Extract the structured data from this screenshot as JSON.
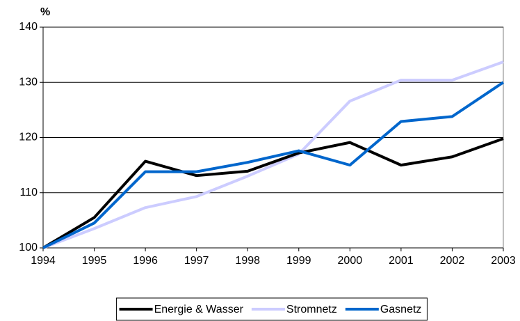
{
  "chart_data": {
    "type": "line",
    "y_label": "%",
    "x": [
      1994,
      1995,
      1996,
      1997,
      1998,
      1999,
      2000,
      2001,
      2002,
      2003
    ],
    "xlim": [
      1994,
      2003
    ],
    "xticks": [
      1994,
      1995,
      1996,
      1997,
      1998,
      1999,
      2000,
      2001,
      2002,
      2003
    ],
    "ylim": [
      100,
      140
    ],
    "yticks": [
      100,
      110,
      120,
      130,
      140
    ],
    "grid": true,
    "legend": "bottom",
    "series": [
      {
        "name": "Energie & Wasser",
        "color": "#000000",
        "values": [
          100,
          105.5,
          115.7,
          113.1,
          113.9,
          117.2,
          119.1,
          115.0,
          116.5,
          119.8
        ]
      },
      {
        "name": "Stromnetz",
        "color": "#ccccff",
        "values": [
          100,
          103.5,
          107.3,
          109.3,
          113.0,
          117.0,
          126.6,
          130.4,
          130.4,
          133.7
        ]
      },
      {
        "name": "Gasnetz",
        "color": "#0066cc",
        "values": [
          100,
          104.5,
          113.8,
          113.8,
          115.5,
          117.6,
          115.0,
          122.9,
          123.8,
          130.0
        ]
      }
    ]
  }
}
